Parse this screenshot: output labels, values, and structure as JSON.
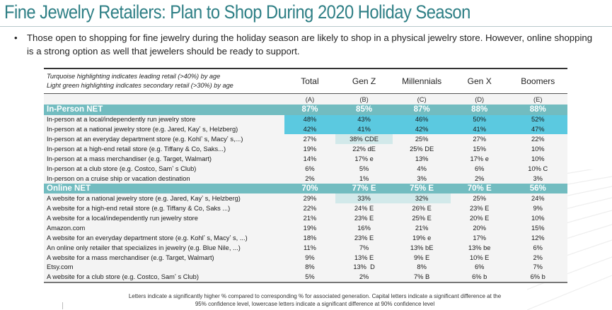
{
  "title": "Fine Jewelry Retailers: Plan to Shop During 2020 Holiday Season",
  "bullet": "Those open to shopping for fine jewelry during the holiday season are likely to shop in a physical jewelry store. However, online shopping is a strong option as well that jewelers should be ready to support.",
  "bullet_symbol": "•",
  "table": {
    "notes": [
      "Turquoise highlighting indicates leading retail (>40%) by age",
      "Light green highlighting indicates secondary retail (>30%) by age"
    ],
    "columns": [
      "Total",
      "Gen Z",
      "Millennials",
      "Gen X",
      "Boomers"
    ],
    "column_letters": [
      "(A)",
      "(B)",
      "(C)",
      "(D)",
      "(E)"
    ],
    "colors": {
      "net": "#72bcc0",
      "turquoise": "#5bc9e0",
      "light_green": "#d2e9ea"
    },
    "rows": [
      {
        "label": "In-Person NET",
        "type": "net",
        "values": [
          "87%",
          "85%",
          "87%",
          "88%",
          "88%"
        ]
      },
      {
        "label": "In-person at a local/independently run jewelry store",
        "values": [
          "48%",
          "43%",
          "46%",
          "50%",
          "52%"
        ],
        "highlight": [
          "t",
          "t",
          "t",
          "t",
          "t"
        ]
      },
      {
        "label": "In-person at a national jewelry store (e.g. Jared, Kayʼ s, Helzberg)",
        "values": [
          "42%",
          "41%",
          "42%",
          "41%",
          "47%"
        ],
        "highlight": [
          "t",
          "t",
          "t",
          "t",
          "t"
        ]
      },
      {
        "label": "In-person at an everyday department store (e.g. Kohlʼ s, Macyʼ s,...)",
        "values": [
          "27%",
          "38% CDE",
          "25%",
          "27%",
          "22%"
        ],
        "highlight": [
          "",
          "g",
          "",
          "",
          ""
        ]
      },
      {
        "label": "In-person at a high-end retail store (e.g. Tiffany & Co, Saks...)",
        "values": [
          "19%",
          "22% dE",
          "25% DE",
          "15%",
          "10%"
        ]
      },
      {
        "label": "In-person at a mass merchandiser (e.g. Target, Walmart)",
        "values": [
          "14%",
          "17% e",
          "13%",
          "17% e",
          "10%"
        ]
      },
      {
        "label": "In-person at a club store (e.g. Costco, Samʼ s Club)",
        "values": [
          "6%",
          "5%",
          "4%",
          "6%",
          "10% C"
        ]
      },
      {
        "label": "In-person on a cruise ship or vacation destination",
        "values": [
          "2%",
          "1%",
          "3%",
          "2%",
          "3%"
        ]
      },
      {
        "label": "Online NET",
        "type": "net",
        "values": [
          "70%",
          "77% E",
          "75% E",
          "70% E",
          "56%"
        ]
      },
      {
        "label": "A website for a national jewelry store (e.g. Jared, Kayʼ s, Helzberg)",
        "values": [
          "29%",
          "33%",
          "32%",
          "25%",
          "24%"
        ],
        "highlight": [
          "",
          "g",
          "g",
          "",
          ""
        ]
      },
      {
        "label": "A website for a high-end retail store (e.g. Tiffany & Co, Saks ...)",
        "values": [
          "22%",
          "24% E",
          "26% E",
          "23% E",
          "9%"
        ]
      },
      {
        "label": "A website for a local/independently run jewelry store",
        "values": [
          "21%",
          "23% E",
          "25% E",
          "20% E",
          "10%"
        ]
      },
      {
        "label": "Amazon.com",
        "values": [
          "19%",
          "16%",
          "21%",
          "20%",
          "15%"
        ]
      },
      {
        "label": "A website for an everyday department store (e.g. Kohlʼ s, Macyʼ s, ...)",
        "values": [
          "18%",
          "23% E",
          "19% e",
          "17%",
          "12%"
        ]
      },
      {
        "label": "An online only retailer that specializes in jewelry (e.g. Blue Nile, ...)",
        "values": [
          "11%",
          "7%",
          "13% bE",
          "13% be",
          "6%"
        ]
      },
      {
        "label": "A website for a mass merchandiser (e.g. Target, Walmart)",
        "values": [
          "9%",
          "13% E",
          "9% E",
          "10% E",
          "2%"
        ]
      },
      {
        "label": "Etsy.com",
        "values": [
          "8%",
          "13%  D",
          "8%",
          "6%",
          "7%"
        ]
      },
      {
        "label": "A website for a club store (e.g. Costco, Samʼ s Club)",
        "values": [
          "5%",
          "2%",
          "7% B",
          "6% b",
          "6% b"
        ]
      }
    ]
  },
  "footnote": [
    "Letters indicate a significantly higher % compared to corresponding % for associated generation. Capital letters indicate a significant difference at the",
    "95% confidence level, lowercase letters indicate a significant difference at 90%  confidence level"
  ]
}
